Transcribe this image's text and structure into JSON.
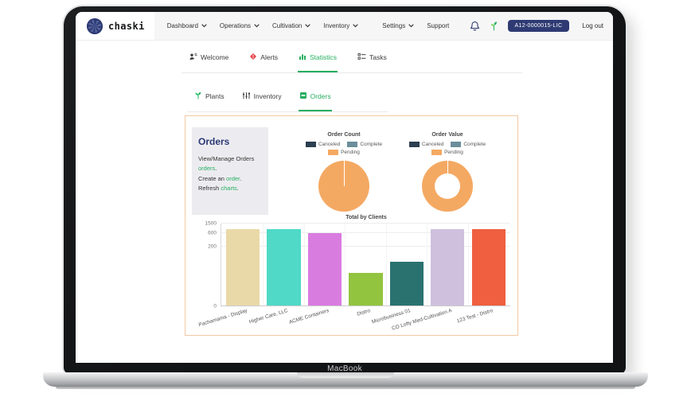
{
  "device": {
    "label": "MacBook"
  },
  "navbar": {
    "brand": "chaski",
    "items": [
      {
        "label": "Dashboard",
        "dropdown": true,
        "group": "left"
      },
      {
        "label": "Operations",
        "dropdown": true,
        "group": "left"
      },
      {
        "label": "Cultivation",
        "dropdown": true,
        "group": "left"
      },
      {
        "label": "Inventory",
        "dropdown": true,
        "group": "left"
      },
      {
        "label": "Settings",
        "dropdown": true,
        "group": "mid"
      },
      {
        "label": "Support",
        "dropdown": false,
        "group": "mid"
      }
    ],
    "icons": [
      "bell-icon",
      "seedling-icon"
    ],
    "license_badge": "A12-0000015-LIC",
    "logout_label": "Log out"
  },
  "tabs": [
    {
      "label": "Welcome",
      "icon": "welcome",
      "active": false
    },
    {
      "label": "Alerts",
      "icon": "alerts",
      "active": false
    },
    {
      "label": "Statistics",
      "icon": "statistics",
      "active": true
    },
    {
      "label": "Tasks",
      "icon": "tasks",
      "active": false
    }
  ],
  "subtabs": [
    {
      "label": "Plants",
      "icon": "plants",
      "active": false
    },
    {
      "label": "Inventory",
      "icon": "inventory",
      "active": false
    },
    {
      "label": "Orders",
      "icon": "orders",
      "active": true
    }
  ],
  "orders_panel": {
    "title": "Orders",
    "lines": [
      {
        "pre": "View/Manage Orders ",
        "link": "orders",
        "post": "."
      },
      {
        "pre": "Create an ",
        "link": "order",
        "post": "."
      },
      {
        "pre": "Refresh ",
        "link": "charts",
        "post": "."
      }
    ]
  },
  "chart_data": [
    {
      "type": "pie",
      "title": "Order Count",
      "donut": false,
      "legend": [
        {
          "label": "Canceled",
          "color": "#2c3e50"
        },
        {
          "label": "Complete",
          "color": "#6b8e9b"
        },
        {
          "label": "Pending",
          "color": "#f4a963"
        }
      ],
      "slices": [
        {
          "label": "Canceled",
          "pct": 0
        },
        {
          "label": "Complete",
          "pct": 0.4
        },
        {
          "label": "Pending",
          "pct": 99.6
        }
      ]
    },
    {
      "type": "pie",
      "title": "Order Value",
      "donut": true,
      "legend": [
        {
          "label": "Canceled",
          "color": "#2c3e50"
        },
        {
          "label": "Complete",
          "color": "#6b8e9b"
        },
        {
          "label": "Pending",
          "color": "#f4a963"
        }
      ],
      "slices": [
        {
          "label": "Canceled",
          "pct": 0
        },
        {
          "label": "Complete",
          "pct": 0.4
        },
        {
          "label": "Pending",
          "pct": 99.6
        }
      ]
    },
    {
      "type": "bar",
      "title": "Total by Clients",
      "yscale": "logarithmic",
      "grid": true,
      "categories": [
        "Pachamama - Display",
        "Higher Care, LLC",
        "ACME Containers",
        "Distro",
        "Microbusiness 01",
        "CO Lofty Med-Cultivation A",
        "123 Test - Distro"
      ],
      "values": [
        850,
        850,
        620,
        20,
        50,
        880,
        880
      ],
      "bar_colors": [
        "#ead9a8",
        "#4fd9c6",
        "#d97ce0",
        "#93c440",
        "#2a7270",
        "#cfc0de",
        "#ef5f40"
      ],
      "bar_height_pct": [
        93,
        93,
        88,
        40,
        53,
        93,
        93
      ],
      "y_ticks": [
        {
          "label": "1500",
          "pct": 100
        },
        {
          "label": "600",
          "pct": 88
        },
        {
          "label": "200",
          "pct": 72
        },
        {
          "label": "0",
          "pct": 0
        }
      ]
    }
  ]
}
